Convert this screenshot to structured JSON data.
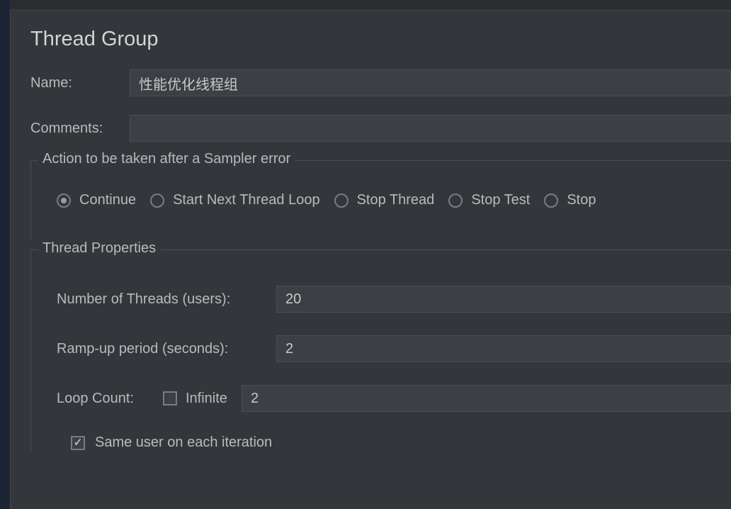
{
  "colors": {
    "background": "#2b2d30",
    "panel": "#33363a",
    "border": "#4a4d51",
    "input_bg": "#3c3f43",
    "text": "#bababa",
    "text_light": "#d4d4d4"
  },
  "title": "Thread Group",
  "fields": {
    "name_label": "Name:",
    "name_value": "性能优化线程组",
    "comments_label": "Comments:",
    "comments_value": ""
  },
  "sampler_error": {
    "legend": "Action to be taken after a Sampler error",
    "options": [
      {
        "label": "Continue",
        "selected": true
      },
      {
        "label": "Start Next Thread Loop",
        "selected": false
      },
      {
        "label": "Stop Thread",
        "selected": false
      },
      {
        "label": "Stop Test",
        "selected": false
      },
      {
        "label": "Stop",
        "selected": false
      }
    ]
  },
  "thread_props": {
    "legend": "Thread Properties",
    "num_threads_label": "Number of Threads (users):",
    "num_threads_value": "20",
    "rampup_label": "Ramp-up period (seconds):",
    "rampup_value": "2",
    "loop_count_label": "Loop Count:",
    "infinite_label": "Infinite",
    "infinite_checked": false,
    "loop_count_value": "2",
    "same_user_label": "Same user on each iteration",
    "same_user_checked": true
  }
}
